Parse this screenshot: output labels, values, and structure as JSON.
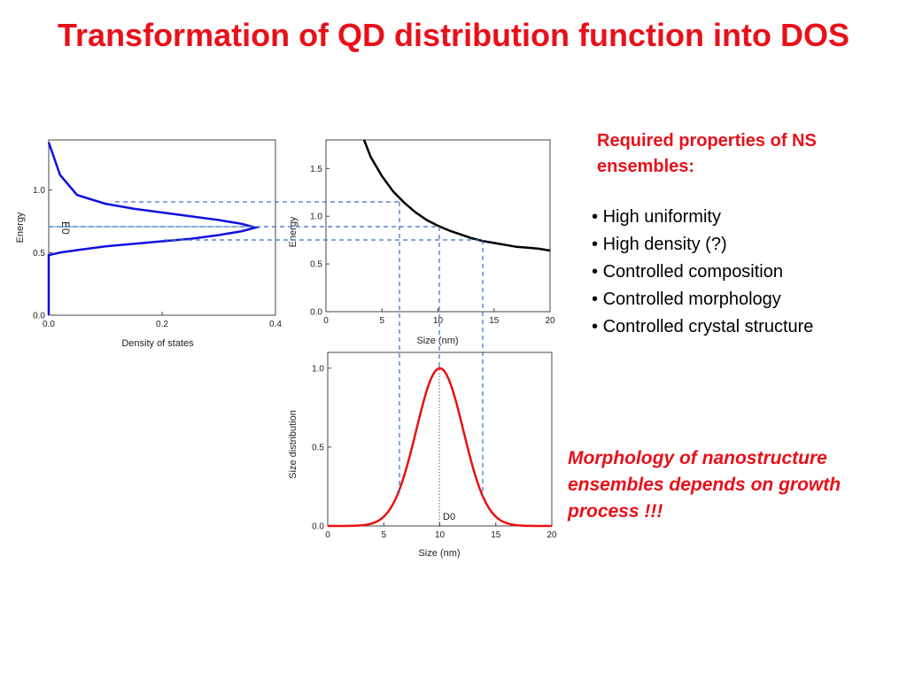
{
  "title": "Transformation of QD distribution function into DOS",
  "requirements": {
    "heading": "Required properties of NS ensembles:",
    "items": [
      "High uniformity",
      "High density (?)",
      "Controlled composition",
      "Controlled morphology",
      "Controlled crystal structure"
    ]
  },
  "note": "Morphology of nanostructure ensembles depends on growth process !!!",
  "colors": {
    "accent": "#e8101a",
    "dos_curve": "#1010e0",
    "energy_curve": "#000000",
    "size_curve": "#e81010",
    "guide_lines": "#3a6fc0"
  },
  "chart_data": [
    {
      "type": "line",
      "xlabel": "Density of states",
      "ylabel": "Energy",
      "xlim": [
        0,
        0.4
      ],
      "ylim": [
        0,
        1.4
      ],
      "xticks": [
        "0.0",
        "0.2",
        "0.4"
      ],
      "yticks": [
        "0.0",
        "0.5",
        "1.0"
      ],
      "annotation": "E0",
      "x": [
        0.0,
        0.02,
        0.05,
        0.1,
        0.15,
        0.2,
        0.25,
        0.3,
        0.34,
        0.365,
        0.34,
        0.3,
        0.25,
        0.2,
        0.15,
        0.1,
        0.05,
        0.02,
        0.0
      ],
      "y": [
        0.48,
        0.5,
        0.52,
        0.55,
        0.57,
        0.59,
        0.61,
        0.64,
        0.67,
        0.7,
        0.73,
        0.76,
        0.79,
        0.82,
        0.85,
        0.89,
        0.96,
        1.12,
        1.38
      ]
    },
    {
      "type": "line",
      "xlabel": "Size (nm)",
      "ylabel": "Energy",
      "xlim": [
        0,
        20
      ],
      "ylim": [
        0,
        1.8
      ],
      "xticks": [
        "0",
        "5",
        "10",
        "15",
        "20"
      ],
      "yticks": [
        "0.0",
        "0.5",
        "1.0",
        "1.5"
      ],
      "x": [
        3.4,
        4,
        5,
        6,
        7,
        8,
        9,
        10,
        11,
        12,
        13,
        14,
        15,
        16,
        17,
        18,
        19,
        20
      ],
      "y": [
        1.8,
        1.62,
        1.42,
        1.26,
        1.14,
        1.04,
        0.96,
        0.9,
        0.85,
        0.81,
        0.77,
        0.74,
        0.72,
        0.7,
        0.68,
        0.67,
        0.66,
        0.64
      ]
    },
    {
      "type": "line",
      "xlabel": "Size (nm)",
      "ylabel": "Size distribution",
      "xlim": [
        0,
        20
      ],
      "ylim": [
        0,
        1.1
      ],
      "xticks": [
        "0",
        "5",
        "10",
        "15",
        "20"
      ],
      "yticks": [
        "0.0",
        "0.5",
        "1.0"
      ],
      "annotation": "D0",
      "center": 10,
      "sigma": 2.1
    }
  ]
}
